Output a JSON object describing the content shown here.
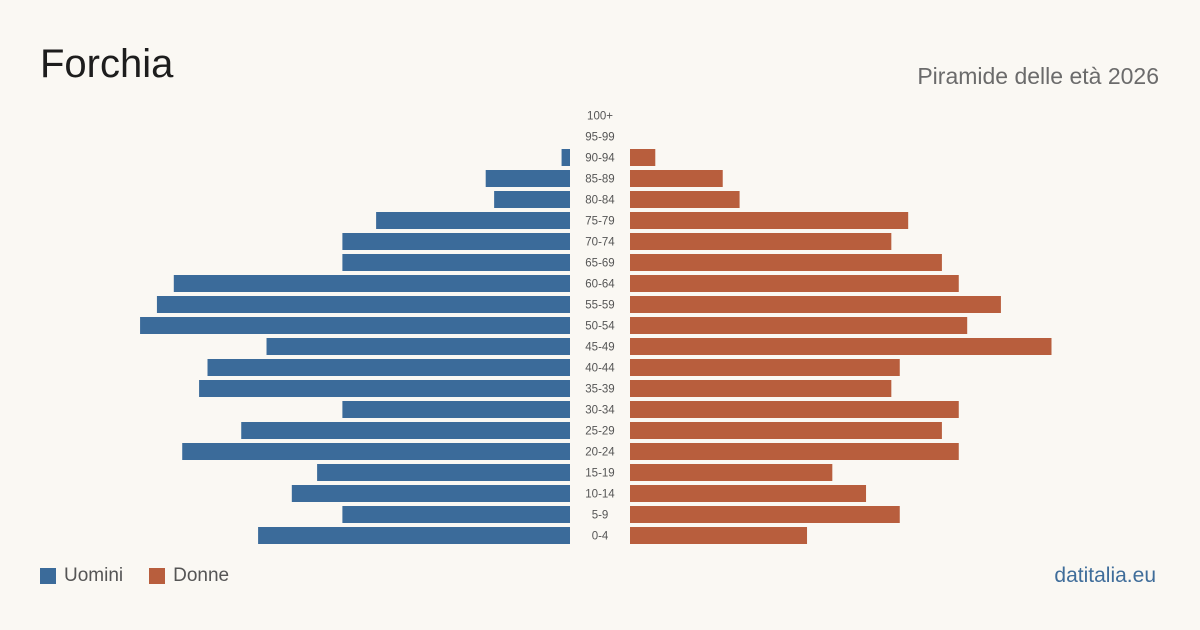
{
  "header": {
    "title": "Forchia",
    "subtitle": "Piramide delle età 2026"
  },
  "legend": {
    "men_label": "Uomini",
    "women_label": "Donne"
  },
  "source": "datitalia.eu",
  "colors": {
    "men": "#3b6b9a",
    "women": "#b85e3d",
    "background": "#faf8f3"
  },
  "chart_data": {
    "type": "bar",
    "orientation": "horizontal-pyramid",
    "categories": [
      "100+",
      "95-99",
      "90-94",
      "85-89",
      "80-84",
      "75-79",
      "70-74",
      "65-69",
      "60-64",
      "55-59",
      "50-54",
      "45-49",
      "40-44",
      "35-39",
      "30-34",
      "25-29",
      "20-24",
      "15-19",
      "10-14",
      "5-9",
      "0-4"
    ],
    "series": [
      {
        "name": "Uomini",
        "values": [
          0,
          0,
          1,
          10,
          9,
          23,
          27,
          27,
          47,
          49,
          51,
          36,
          43,
          44,
          27,
          39,
          46,
          30,
          33,
          27,
          37
        ]
      },
      {
        "name": "Donne",
        "values": [
          0,
          0,
          3,
          11,
          13,
          33,
          31,
          37,
          39,
          44,
          40,
          50,
          32,
          31,
          39,
          37,
          39,
          24,
          28,
          32,
          21
        ]
      }
    ]
  }
}
